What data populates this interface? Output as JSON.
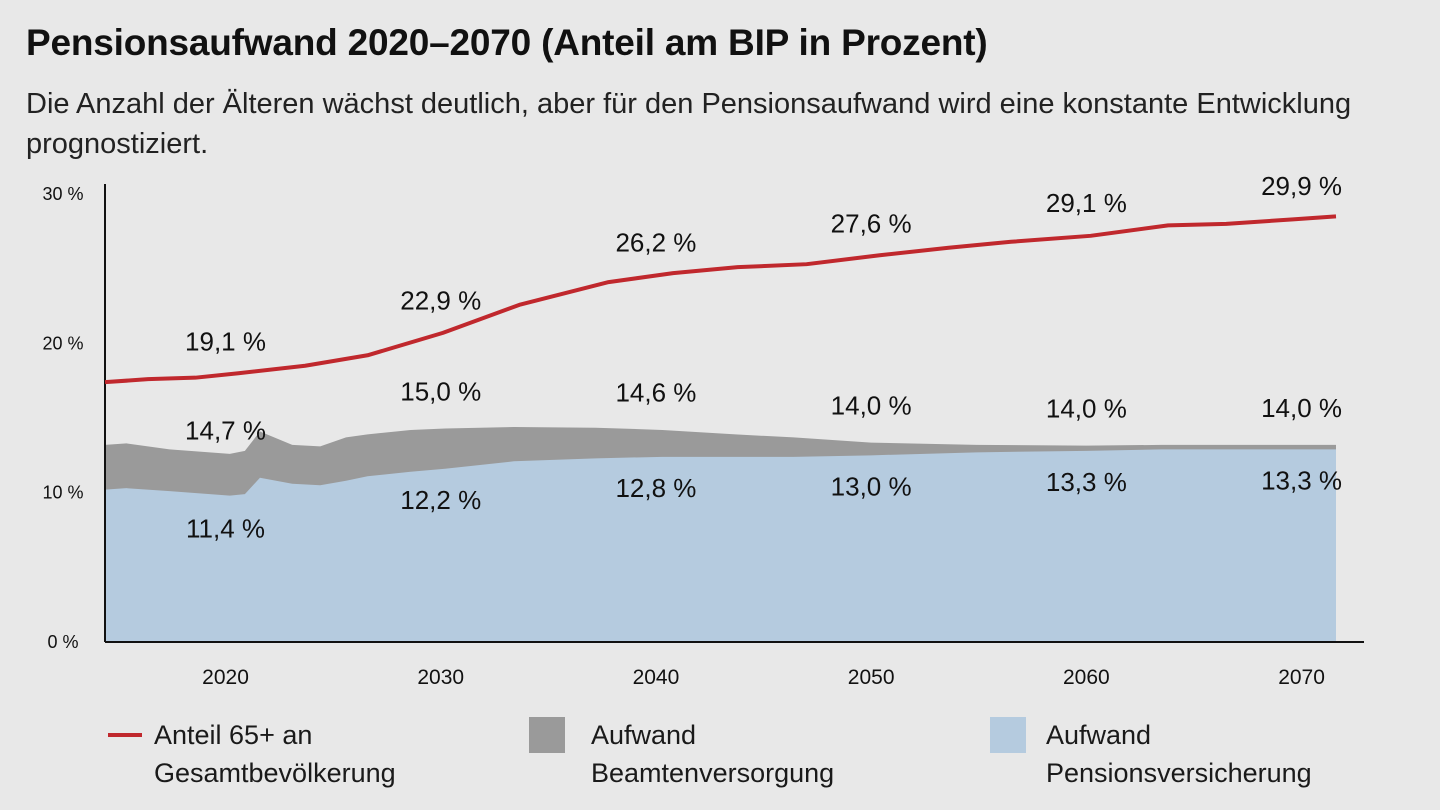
{
  "title": "Pensionsaufwand 2020–2070 (Anteil am BIP in Prozent)",
  "subtitle": "Die Anzahl der Älteren wächst deutlich, aber für den Pensionsaufwand wird eine konstante Entwicklung prognostiziert.",
  "colors": {
    "line": "#c0282d",
    "beamten": "#9a9a9a",
    "pension": "#b5cbdf",
    "axis": "#111111",
    "background": "#e8e8e8"
  },
  "chart_data": {
    "type": "area",
    "xlim": [
      2014.4,
      2071.6
    ],
    "ylim": [
      0,
      30
    ],
    "yticks": [
      0,
      10,
      20,
      30
    ],
    "ytick_labels": [
      "0 %",
      "10 %",
      "20 %",
      "30 %"
    ],
    "xticks": [
      2020,
      2030,
      2040,
      2050,
      2060,
      2070
    ],
    "xtick_labels": [
      "2020",
      "2030",
      "2040",
      "2050",
      "2060",
      "2070"
    ],
    "series": [
      {
        "name": "Anteil 65+ an Gesamtbevölkerung",
        "kind": "line",
        "x": [
          2014.4,
          2016.4,
          2018.6,
          2020.6,
          2023.7,
          2026.6,
          2030.1,
          2033.7,
          2037.8,
          2040.8,
          2043.8,
          2047.0,
          2050.4,
          2053.6,
          2056.5,
          2060.2,
          2063.8,
          2066.5,
          2069.6,
          2071.6
        ],
        "y": [
          17.4,
          17.6,
          17.7,
          18.0,
          18.5,
          19.2,
          20.7,
          22.6,
          24.1,
          24.7,
          25.1,
          25.3,
          25.9,
          26.4,
          26.8,
          27.2,
          27.9,
          28.0,
          28.3,
          28.5
        ]
      },
      {
        "name": "Aufwand Beamtenversorgung",
        "kind": "area-top",
        "x": [
          2014.4,
          2015.4,
          2017.4,
          2020.2,
          2020.9,
          2021.6,
          2023.1,
          2024.4,
          2025.6,
          2026.6,
          2028.6,
          2030.2,
          2033.4,
          2037.2,
          2040.3,
          2043.7,
          2046.4,
          2050.0,
          2054.9,
          2060.0,
          2063.5,
          2066.5,
          2071.6
        ],
        "y": [
          13.2,
          13.3,
          12.9,
          12.6,
          12.8,
          14.1,
          13.2,
          13.1,
          13.7,
          13.9,
          14.2,
          14.3,
          14.4,
          14.35,
          14.2,
          13.9,
          13.7,
          13.35,
          13.2,
          13.15,
          13.2,
          13.2,
          13.2
        ]
      },
      {
        "name": "Aufwand Pensionsversicherung",
        "kind": "area",
        "x": [
          2014.4,
          2015.4,
          2017.4,
          2020.2,
          2020.9,
          2021.6,
          2023.1,
          2024.4,
          2025.6,
          2026.6,
          2028.6,
          2030.2,
          2033.4,
          2037.2,
          2040.3,
          2043.7,
          2046.4,
          2050.0,
          2054.9,
          2060.0,
          2063.5,
          2066.5,
          2071.6
        ],
        "y": [
          10.2,
          10.3,
          10.1,
          9.8,
          9.9,
          11.0,
          10.6,
          10.5,
          10.8,
          11.1,
          11.4,
          11.6,
          12.1,
          12.3,
          12.4,
          12.4,
          12.4,
          12.5,
          12.7,
          12.8,
          12.9,
          12.9,
          12.9
        ]
      }
    ],
    "annotations": {
      "line": [
        {
          "x": 2020,
          "label": "19,1 %"
        },
        {
          "x": 2030,
          "label": "22,9 %"
        },
        {
          "x": 2040,
          "label": "26,2 %"
        },
        {
          "x": 2050,
          "label": "27,6 %"
        },
        {
          "x": 2060,
          "label": "29,1 %"
        },
        {
          "x": 2070,
          "label": "29,9 %"
        }
      ],
      "total": [
        {
          "x": 2020,
          "label": "14,7 %"
        },
        {
          "x": 2030,
          "label": "15,0 %"
        },
        {
          "x": 2040,
          "label": "14,6 %"
        },
        {
          "x": 2050,
          "label": "14,0 %"
        },
        {
          "x": 2060,
          "label": "14,0 %"
        },
        {
          "x": 2070,
          "label": "14,0 %"
        }
      ],
      "pension": [
        {
          "x": 2020,
          "label": "11,4 %"
        },
        {
          "x": 2030,
          "label": "12,2 %"
        },
        {
          "x": 2040,
          "label": "12,8 %"
        },
        {
          "x": 2050,
          "label": "13,0 %"
        },
        {
          "x": 2060,
          "label": "13,3 %"
        },
        {
          "x": 2070,
          "label": "13,3 %"
        }
      ]
    }
  },
  "legend": [
    {
      "line1": "Anteil 65+ an",
      "line2": "Gesamtbevölkerung"
    },
    {
      "line1": "Aufwand",
      "line2": "Beamtenversorgung"
    },
    {
      "line1": "Aufwand",
      "line2": "Pensionsversicherung"
    }
  ]
}
